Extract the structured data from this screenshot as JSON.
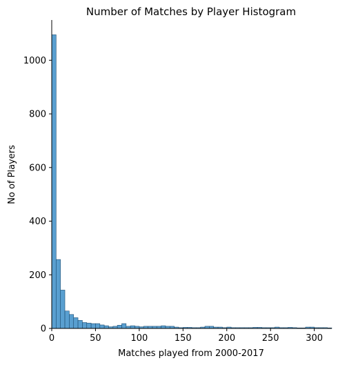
{
  "chart_data": {
    "type": "bar",
    "title": "Number of Matches by Player Histogram",
    "xlabel": "Matches played from 2000-2017",
    "ylabel": "No of Players",
    "xlim": [
      0,
      320
    ],
    "ylim": [
      0,
      1150
    ],
    "xticks": [
      0,
      50,
      100,
      150,
      200,
      250,
      300
    ],
    "yticks": [
      0,
      200,
      400,
      600,
      800,
      1000
    ],
    "bin_width": 5,
    "bin_start": 0,
    "values": [
      1095,
      257,
      143,
      65,
      52,
      40,
      30,
      22,
      20,
      18,
      18,
      13,
      10,
      6,
      8,
      12,
      18,
      8,
      10,
      8,
      6,
      8,
      8,
      8,
      8,
      10,
      8,
      8,
      5,
      3,
      4,
      4,
      3,
      3,
      5,
      8,
      8,
      5,
      5,
      3,
      5,
      3,
      3,
      3,
      3,
      3,
      4,
      4,
      3,
      3,
      3,
      5,
      3,
      3,
      4,
      3,
      2,
      2,
      5,
      5,
      3,
      3,
      3,
      2
    ],
    "grid": false,
    "legend": "none",
    "bar_color": "#3c8ec8"
  }
}
